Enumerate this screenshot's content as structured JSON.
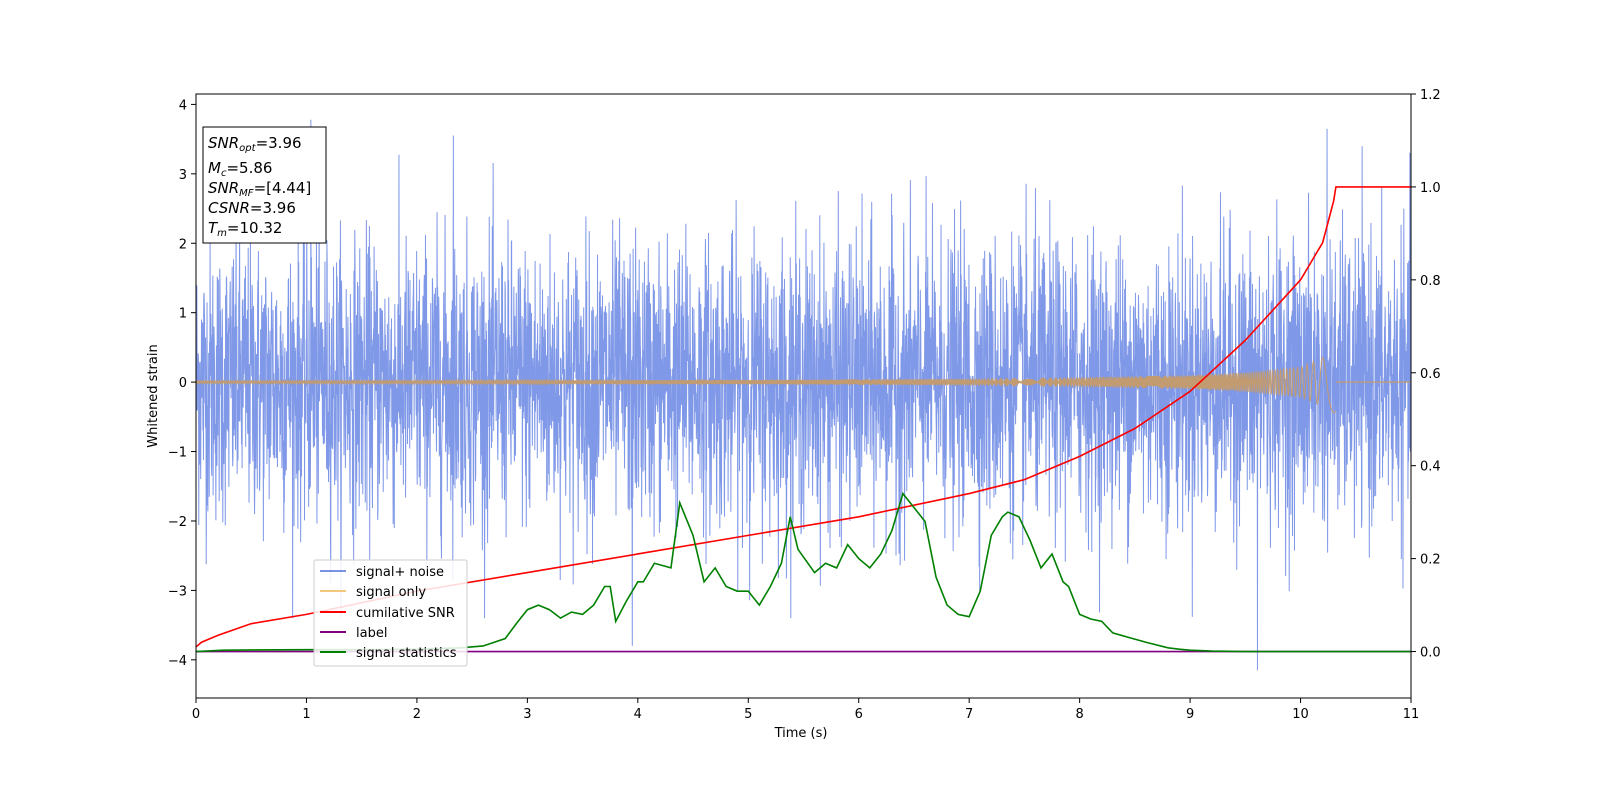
{
  "chart_data": {
    "type": "line",
    "xlabel": "Time (s)",
    "ylabel": "Whitened strain",
    "xlim": [
      0,
      11
    ],
    "ylim": [
      -4.55,
      4.15
    ],
    "y2lim": [
      -0.1,
      1.2
    ],
    "x_ticks": [
      "0",
      "1",
      "2",
      "3",
      "4",
      "5",
      "6",
      "7",
      "8",
      "9",
      "10",
      "11"
    ],
    "y_ticks": [
      "−4",
      "−3",
      "−2",
      "−1",
      "0",
      "1",
      "2",
      "3",
      "4"
    ],
    "y2_ticks": [
      "0.0",
      "0.2",
      "0.4",
      "0.6",
      "0.8",
      "1.0",
      "1.2"
    ],
    "grid": false,
    "legend_position": "lower-left",
    "colors": {
      "noise": "#7892e6",
      "signal": "#c29b70",
      "cumulative": "#ff0000",
      "label": "#800080",
      "statistics": "#008000"
    },
    "series": [
      {
        "name": "signal+ noise",
        "axis": "left",
        "description": "white noise, sigma about 1, spiky peaks up to about 3.8",
        "noise_sigma": 1.0,
        "peaks": [
          [
            1.04,
            3.78
          ],
          [
            2.33,
            3.55
          ],
          [
            3.95,
            3.76
          ],
          [
            9.61,
            -4.15
          ],
          [
            3.95,
            -3.8
          ],
          [
            10.24,
            3.65
          ]
        ]
      },
      {
        "name": "signal only",
        "axis": "left",
        "description": "chirp with growing amplitude, ends at merger time",
        "t_merge": 10.32,
        "envelope": [
          [
            0,
            0.02
          ],
          [
            5,
            0.03
          ],
          [
            7,
            0.05
          ],
          [
            8,
            0.07
          ],
          [
            9,
            0.1
          ],
          [
            9.5,
            0.14
          ],
          [
            10,
            0.22
          ],
          [
            10.2,
            0.35
          ],
          [
            10.3,
            0.5
          ],
          [
            10.32,
            0.5
          ]
        ]
      },
      {
        "name": "cumilative SNR",
        "axis": "right",
        "x": [
          0,
          0.05,
          0.2,
          0.5,
          1,
          2,
          3,
          4,
          5,
          6,
          7,
          7.5,
          8,
          8.5,
          9,
          9.5,
          10,
          10.2,
          10.3,
          10.32,
          11
        ],
        "y": [
          0.01,
          0.02,
          0.035,
          0.06,
          0.08,
          0.13,
          0.17,
          0.21,
          0.25,
          0.29,
          0.34,
          0.37,
          0.42,
          0.48,
          0.56,
          0.67,
          0.8,
          0.88,
          0.97,
          1.0,
          1.0
        ]
      },
      {
        "name": "label",
        "axis": "right",
        "x": [
          0,
          11
        ],
        "y": [
          0,
          0
        ]
      },
      {
        "name": "signal statistics",
        "axis": "right",
        "x": [
          0,
          0.25,
          1,
          1.5,
          2,
          2.4,
          2.6,
          2.8,
          2.9,
          3.0,
          3.1,
          3.2,
          3.3,
          3.4,
          3.5,
          3.6,
          3.7,
          3.75,
          3.8,
          3.9,
          4.0,
          4.05,
          4.15,
          4.3,
          4.38,
          4.5,
          4.6,
          4.7,
          4.8,
          4.9,
          5.0,
          5.1,
          5.2,
          5.3,
          5.38,
          5.45,
          5.6,
          5.7,
          5.8,
          5.9,
          6.0,
          6.1,
          6.2,
          6.3,
          6.4,
          6.5,
          6.6,
          6.7,
          6.8,
          6.9,
          7.0,
          7.1,
          7.2,
          7.3,
          7.35,
          7.45,
          7.55,
          7.65,
          7.75,
          7.85,
          7.9,
          8.0,
          8.1,
          8.2,
          8.3,
          8.45,
          8.6,
          8.8,
          8.9,
          9.0,
          9.2,
          9.5,
          11
        ],
        "y": [
          0.0,
          0.003,
          0.004,
          0.004,
          0.005,
          0.008,
          0.012,
          0.028,
          0.06,
          0.09,
          0.1,
          0.09,
          0.072,
          0.085,
          0.08,
          0.1,
          0.14,
          0.14,
          0.065,
          0.11,
          0.15,
          0.15,
          0.19,
          0.18,
          0.32,
          0.25,
          0.15,
          0.18,
          0.14,
          0.13,
          0.13,
          0.1,
          0.14,
          0.19,
          0.29,
          0.22,
          0.17,
          0.19,
          0.18,
          0.23,
          0.2,
          0.18,
          0.21,
          0.26,
          0.34,
          0.31,
          0.28,
          0.16,
          0.1,
          0.08,
          0.075,
          0.13,
          0.25,
          0.29,
          0.3,
          0.29,
          0.24,
          0.18,
          0.21,
          0.15,
          0.14,
          0.08,
          0.07,
          0.065,
          0.04,
          0.03,
          0.02,
          0.008,
          0.005,
          0.003,
          0.001,
          0.0,
          0.0
        ]
      }
    ],
    "info_box": {
      "snr_opt": "=3.96",
      "mc": "=5.86",
      "snr_mf": "=[4.44]",
      "csnr": "=3.96",
      "tm": "=10.32"
    }
  }
}
